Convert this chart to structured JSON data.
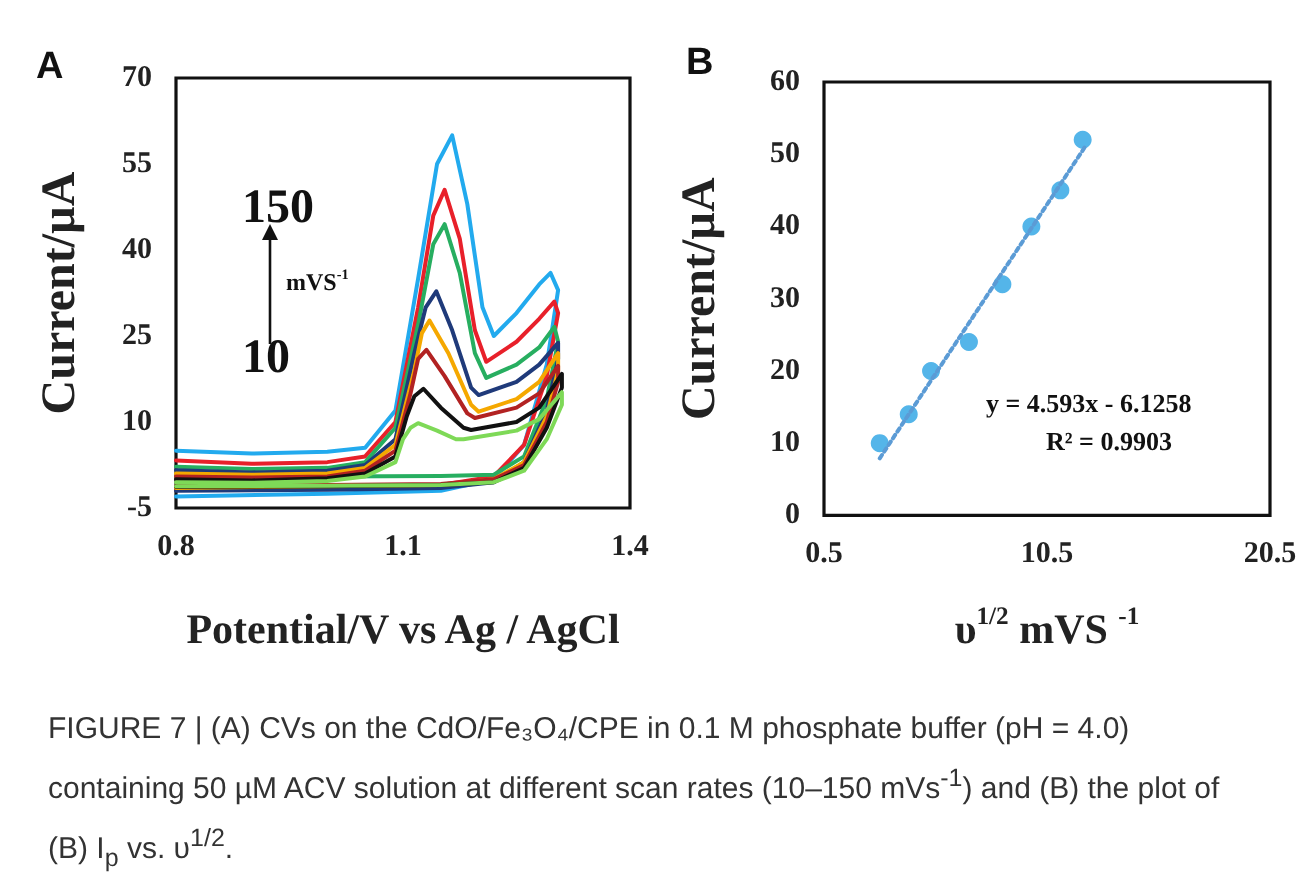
{
  "chart_data": [
    {
      "type": "line",
      "title": "A",
      "xlabel": "Potential/V vs Ag / AgCl",
      "ylabel": "Current/µA",
      "xlim": [
        0.8,
        1.4
      ],
      "ylim": [
        -5,
        70
      ],
      "xticks": [
        0.8,
        1.1,
        1.4
      ],
      "yticks": [
        -5,
        10,
        25,
        40,
        55,
        70
      ],
      "marker": "none",
      "annotations": [
        "150",
        "mVS$^{-1}$",
        "10"
      ],
      "series": [
        {
          "color": "#22aaee",
          "x": [
            0.8,
            0.9,
            1.0,
            1.05,
            1.09,
            1.12,
            1.145,
            1.165,
            1.185,
            1.205,
            1.22,
            1.25,
            1.28,
            1.295,
            1.305,
            1.29,
            1.26,
            1.22,
            1.15,
            1.0,
            0.8
          ],
          "values": [
            5,
            4.5,
            4.8,
            5.5,
            12,
            35,
            55,
            60,
            48,
            30,
            25,
            29,
            34,
            36,
            33,
            20,
            6,
            0,
            -2,
            -2.5,
            -3
          ]
        },
        {
          "color": "#e8202a",
          "x": [
            0.8,
            0.9,
            1.0,
            1.05,
            1.09,
            1.12,
            1.14,
            1.155,
            1.175,
            1.195,
            1.21,
            1.25,
            1.28,
            1.3,
            1.305,
            1.29,
            1.26,
            1.22,
            1.15,
            1.0,
            0.8
          ],
          "values": [
            3.3,
            2.7,
            3,
            4,
            10,
            30,
            46,
            50.5,
            42,
            26,
            20.5,
            24,
            28,
            31,
            29,
            18,
            6,
            0.5,
            -1,
            -1.5,
            -1.8
          ]
        },
        {
          "color": "#27ae60",
          "x": [
            0.8,
            0.9,
            1.0,
            1.05,
            1.09,
            1.12,
            1.14,
            1.155,
            1.175,
            1.195,
            1.21,
            1.25,
            1.28,
            1.3,
            1.305,
            1.29,
            1.26,
            1.22,
            1.15,
            1.0,
            0.8
          ],
          "values": [
            2.2,
            1.8,
            2,
            3,
            9,
            27,
            41,
            44.5,
            36,
            22,
            17.7,
            20,
            23,
            26.6,
            24,
            14,
            4,
            0.8,
            0.6,
            0.5,
            0.4
          ]
        },
        {
          "color": "#1f3a7a",
          "x": [
            0.8,
            0.9,
            1.0,
            1.05,
            1.09,
            1.115,
            1.13,
            1.144,
            1.165,
            1.19,
            1.2,
            1.25,
            1.28,
            1.305,
            1.305,
            1.29,
            1.26,
            1.22,
            1.15,
            1.0,
            0.8
          ],
          "values": [
            1.6,
            1.2,
            1.5,
            2.5,
            7,
            22,
            30,
            32.8,
            26,
            16,
            14.7,
            17,
            20,
            23.8,
            21,
            12,
            3,
            -0.5,
            -1.5,
            -1.8,
            -2
          ]
        },
        {
          "color": "#f5a800",
          "x": [
            0.8,
            0.9,
            1.0,
            1.05,
            1.09,
            1.115,
            1.125,
            1.135,
            1.16,
            1.19,
            1.2,
            1.25,
            1.28,
            1.305,
            1.305,
            1.29,
            1.26,
            1.22,
            1.15,
            1.0,
            0.8
          ],
          "values": [
            1,
            0.8,
            1,
            2,
            6,
            19,
            25.5,
            27.7,
            22,
            13,
            11.8,
            14,
            17,
            22,
            19,
            11,
            3,
            0,
            -1,
            -1.2,
            -1.5
          ]
        },
        {
          "color": "#b22222",
          "x": [
            0.8,
            0.9,
            1.0,
            1.05,
            1.09,
            1.11,
            1.12,
            1.131,
            1.155,
            1.185,
            1.195,
            1.25,
            1.28,
            1.305,
            1.305,
            1.29,
            1.26,
            1.22,
            1.15,
            1.0,
            0.8
          ],
          "values": [
            0.5,
            0.3,
            0.5,
            1.5,
            5,
            15,
            21,
            22.6,
            18,
            11.5,
            10.7,
            12.5,
            15,
            19.8,
            17,
            10,
            2.5,
            0,
            -0.8,
            -1,
            -1.2
          ]
        },
        {
          "color": "#111111",
          "x": [
            0.8,
            0.9,
            1.0,
            1.05,
            1.09,
            1.105,
            1.115,
            1.127,
            1.15,
            1.18,
            1.19,
            1.25,
            1.28,
            1.31,
            1.31,
            1.29,
            1.26,
            1.22,
            1.15,
            1.0,
            0.8
          ],
          "values": [
            0,
            -0.2,
            0.2,
            1,
            4,
            11,
            14.5,
            15.8,
            12.5,
            9,
            8.6,
            10,
            12.5,
            18.4,
            16,
            9,
            2,
            -0.5,
            -1,
            -1.2,
            -1.3
          ]
        },
        {
          "color": "#7ed957",
          "x": [
            0.8,
            0.9,
            1.0,
            1.05,
            1.09,
            1.1,
            1.11,
            1.12,
            1.145,
            1.17,
            1.18,
            1.25,
            1.28,
            1.31,
            1.31,
            1.29,
            1.26,
            1.22,
            1.15,
            1.0,
            0.8
          ],
          "values": [
            -0.5,
            -0.6,
            -0.3,
            0.5,
            3,
            7,
            9,
            9.8,
            8.5,
            7,
            7,
            8.5,
            10.5,
            15.2,
            13,
            7,
            1.5,
            -0.5,
            -1,
            -1.1,
            -1.2
          ]
        }
      ]
    },
    {
      "type": "scatter",
      "title": "B",
      "xlabel": "υ$^{1/2}$ mVS $^{-1}$",
      "ylabel": "Current/µA",
      "xlim": [
        0.5,
        20.5
      ],
      "ylim": [
        0,
        60
      ],
      "xticks": [
        0.5,
        10.5,
        20.5
      ],
      "yticks": [
        0,
        10,
        20,
        30,
        40,
        50,
        60
      ],
      "marker": "circle",
      "annotations": [
        "y = 4.593x - 6.1258",
        "R² = 0.9903",
        "FIGURE 7 | (A) CVs on the CdO/Fe₃O₄/CPE in 0.1 M phosphate buffer (pH = 4.0) containing 50 µM ACV solution at different scan rates (10–150 mVs$^{-1}$) and (B) the plot of (B) I$_{p}$ vs. υ$^{1/2}$."
      ],
      "series": [
        {
          "color": "#29a3e3",
          "x": [
            3.0,
            4.3,
            5.3,
            7.0,
            8.5,
            9.8,
            11.1,
            12.1
          ],
          "values": [
            10,
            14,
            20,
            24,
            32,
            40,
            45,
            52
          ]
        },
        {
          "type": "line",
          "color": "#5b9bd5",
          "line_style": "dotted",
          "marker": "none",
          "x": [
            3.0,
            12.2
          ],
          "values": [
            7.9,
            51
          ]
        }
      ]
    }
  ]
}
